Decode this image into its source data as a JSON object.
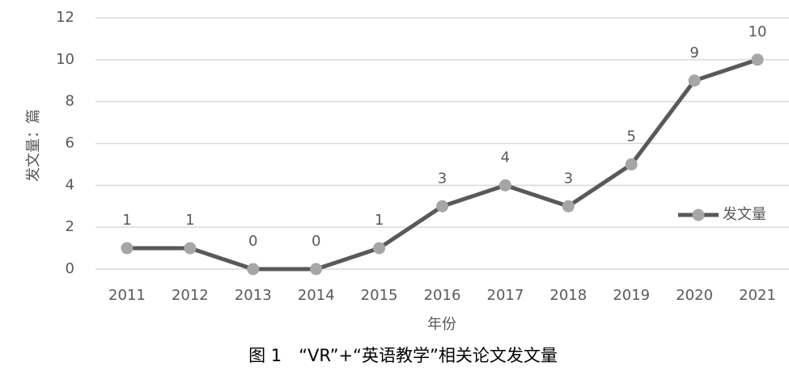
{
  "chart_data": {
    "type": "line",
    "caption": "图 1　“VR”+“英语教学”相关论文发文量",
    "x_label": "年份",
    "y_label": "发文量：篇",
    "categories": [
      "2011",
      "2012",
      "2013",
      "2014",
      "2015",
      "2016",
      "2017",
      "2018",
      "2019",
      "2020",
      "2021"
    ],
    "series": [
      {
        "name": "发文量",
        "color": "#595959",
        "marker_color": "#a6a6a6",
        "values": [
          1,
          1,
          0,
          0,
          1,
          3,
          4,
          3,
          5,
          9,
          10
        ]
      }
    ],
    "ylim": [
      0,
      12
    ],
    "yticks": [
      0,
      2,
      4,
      6,
      8,
      10,
      12
    ],
    "grid": true,
    "legend": "right",
    "data_labels": true
  }
}
